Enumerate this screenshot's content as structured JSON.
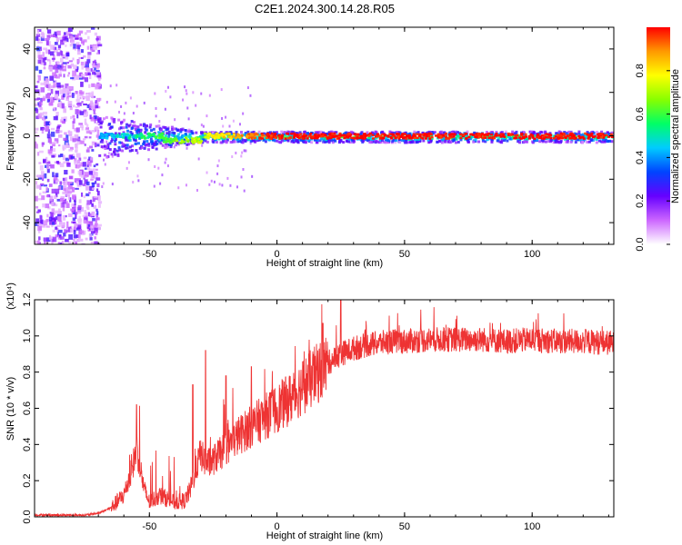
{
  "title": "C2E1.2024.300.14.28.R05",
  "chart_data": [
    {
      "type": "heatmap",
      "name": "spectrogram",
      "xlabel": "Height of straight line (km)",
      "ylabel": "Frequency (Hz)",
      "xlim": [
        -95,
        132
      ],
      "ylim": [
        -50,
        50
      ],
      "xticks": [
        -50,
        0,
        50,
        100
      ],
      "yticks": [
        -40,
        -20,
        0,
        20,
        40
      ],
      "colorbar": {
        "label": "Normalized spectral amplitude",
        "range": [
          0,
          1
        ],
        "ticks": [
          "0.0",
          "0.2",
          "0.4",
          "0.6",
          "0.8"
        ],
        "colors": [
          "#ffffff",
          "#cc66ff",
          "#6600ff",
          "#0044ff",
          "#00ccff",
          "#00ff66",
          "#88ff00",
          "#ffff00",
          "#ff9900",
          "#ff0000"
        ]
      },
      "features": {
        "noise_region_x": [
          -95,
          -70
        ],
        "transition_region_x": [
          -70,
          -30
        ],
        "signal_line_freq_hz": 0
      }
    },
    {
      "type": "line",
      "name": "snr",
      "xlabel": "Height of straight line (km)",
      "ylabel": "SNR (10 * v/v)",
      "yscale_label": "(x10⁴)",
      "xlim": [
        -95,
        132
      ],
      "ylim": [
        0,
        1.2
      ],
      "xticks": [
        -50,
        0,
        50,
        100
      ],
      "yticks": [
        "0.0",
        "0.2",
        "0.4",
        "0.6",
        "0.8",
        "1.0",
        "1.2"
      ],
      "color": "#ee3333",
      "envelope": {
        "x": [
          -95,
          -75,
          -70,
          -65,
          -60,
          -57,
          -55,
          -52,
          -50,
          -46,
          -40,
          -36,
          -34,
          -32,
          -30,
          -28,
          -26,
          -20,
          -15,
          -10,
          -5,
          0,
          5,
          10,
          15,
          20,
          25,
          30,
          35,
          40,
          45,
          50,
          60,
          70,
          80,
          90,
          100,
          110,
          120,
          132
        ],
        "y": [
          0.01,
          0.01,
          0.02,
          0.05,
          0.12,
          0.25,
          0.38,
          0.15,
          0.08,
          0.12,
          0.08,
          0.09,
          0.15,
          0.25,
          0.35,
          0.3,
          0.3,
          0.38,
          0.45,
          0.5,
          0.55,
          0.6,
          0.65,
          0.72,
          0.78,
          0.85,
          0.9,
          0.93,
          0.95,
          0.96,
          0.97,
          0.97,
          0.98,
          0.98,
          0.98,
          0.97,
          0.98,
          0.97,
          0.97,
          0.96
        ]
      },
      "peaks": [
        {
          "x": -55,
          "y": 0.62
        },
        {
          "x": -33,
          "y": 0.73
        },
        {
          "x": -28,
          "y": 0.92
        },
        {
          "x": -20,
          "y": 0.78
        },
        {
          "x": -10,
          "y": 0.83
        },
        {
          "x": 18,
          "y": 1.07
        },
        {
          "x": 25,
          "y": 1.2
        }
      ]
    }
  ]
}
